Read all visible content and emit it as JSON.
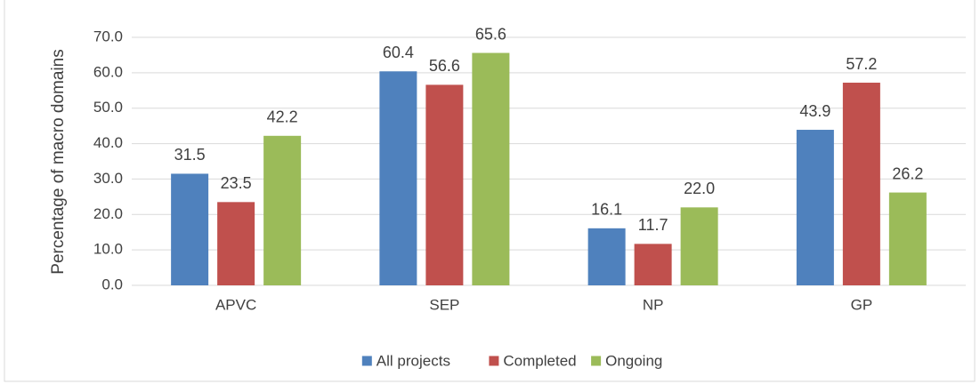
{
  "chart_data": {
    "type": "bar",
    "y_label": "Percentage of macro domains",
    "categories": [
      "APVC",
      "SEP",
      "NP",
      "GP"
    ],
    "series": [
      {
        "name": "All projects",
        "color": "#4f81bd",
        "values": [
          31.5,
          60.4,
          16.1,
          43.9
        ],
        "value_labels": [
          "31.5",
          "60.4",
          "16.1",
          "43.9"
        ]
      },
      {
        "name": "Completed",
        "color": "#c0504d",
        "values": [
          23.5,
          56.6,
          11.7,
          57.2
        ],
        "value_labels": [
          "23.5",
          "56.6",
          "11.7",
          "57.2"
        ]
      },
      {
        "name": "Ongoing",
        "color": "#9bbb59",
        "values": [
          42.2,
          65.6,
          22.0,
          26.2
        ],
        "value_labels": [
          "42.2",
          "65.6",
          "22.0",
          "26.2"
        ]
      }
    ],
    "ylim": [
      0,
      70
    ],
    "yticks": [
      {
        "value": 0,
        "label": "0.0"
      },
      {
        "value": 10,
        "label": "10.0"
      },
      {
        "value": 20,
        "label": "20.0"
      },
      {
        "value": 30,
        "label": "30.0"
      },
      {
        "value": 40,
        "label": "40.0"
      },
      {
        "value": 50,
        "label": "50.0"
      },
      {
        "value": 60,
        "label": "60.0"
      },
      {
        "value": 70,
        "label": "70.0"
      }
    ],
    "grid": true,
    "legend": "bottom"
  }
}
